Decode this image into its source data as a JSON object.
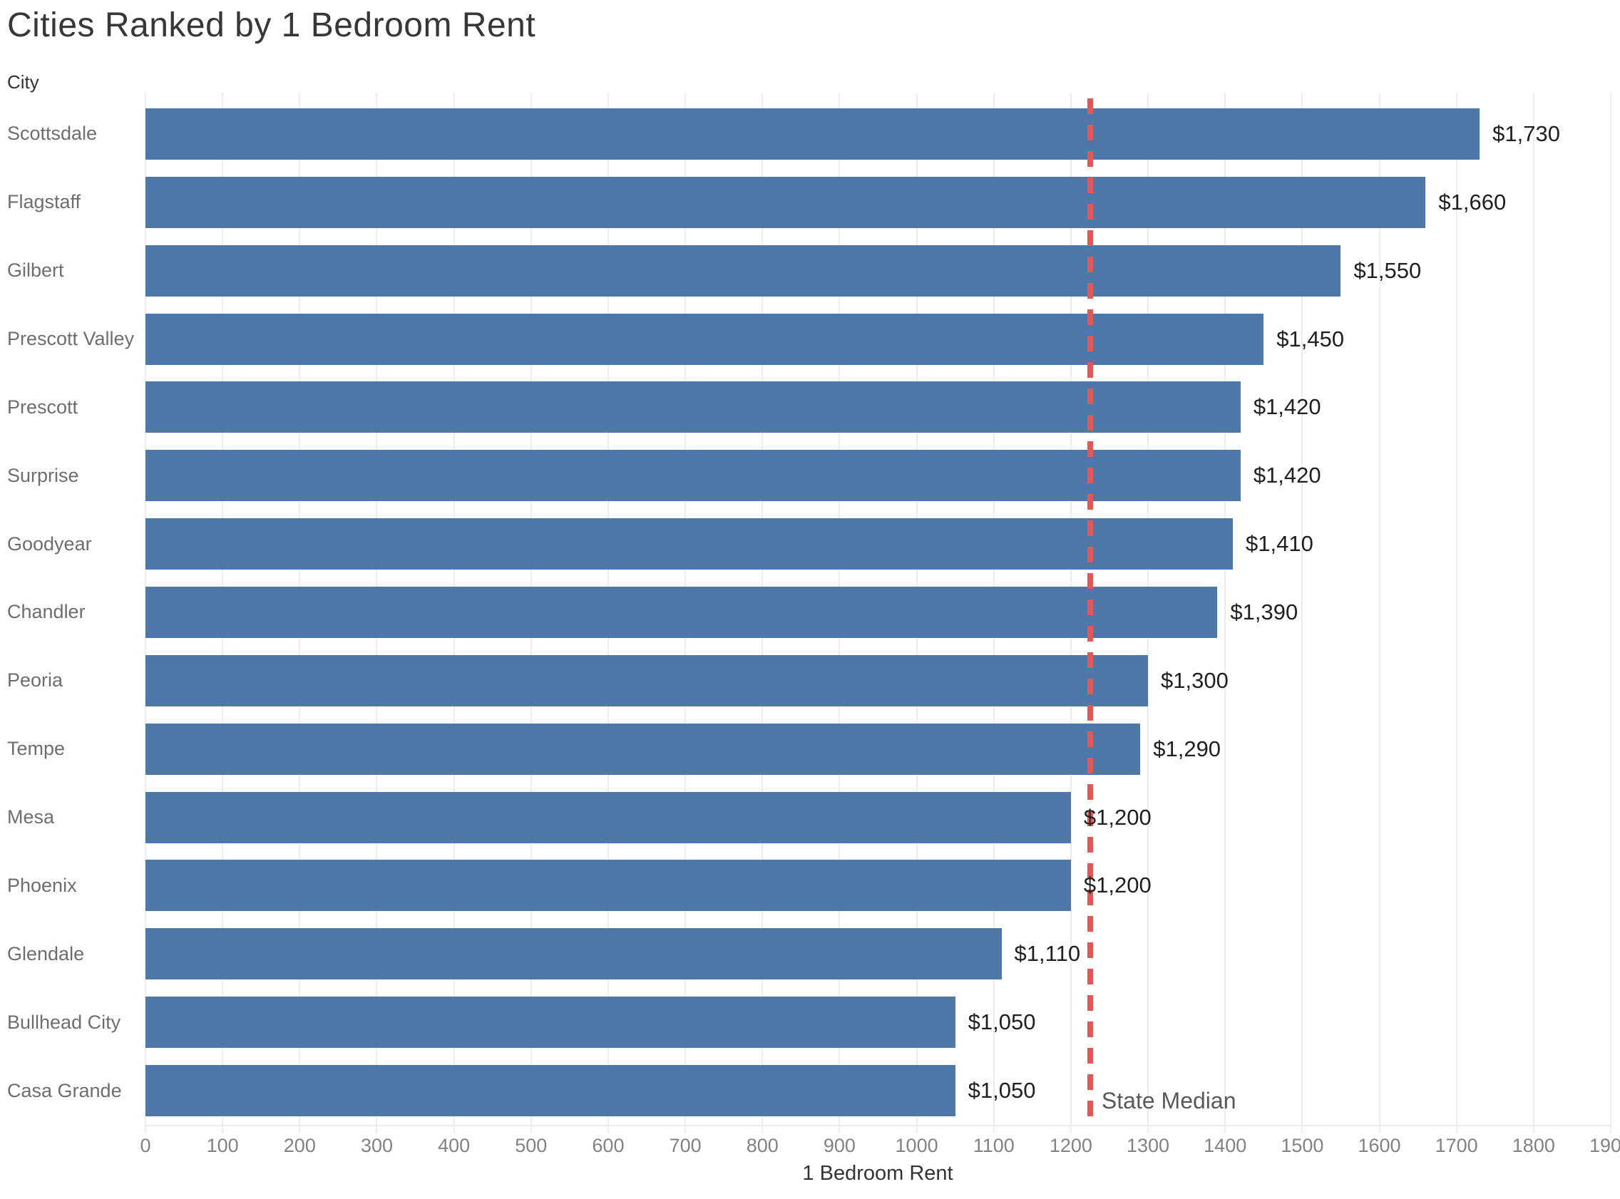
{
  "title": "Cities Ranked by 1 Bedroom Rent",
  "column_header": "City",
  "x_axis_label": "1 Bedroom Rent",
  "reference_line_label": "State Median",
  "colors": {
    "bar": "#4d78a8",
    "reference_line": "#e05858",
    "gridline": "#ededed",
    "title_text": "#373737",
    "city_label_text": "#6e6e6e",
    "value_label_text": "#202020",
    "tick_label_text": "#828282"
  },
  "chart_data": {
    "type": "bar",
    "orientation": "horizontal",
    "title": "Cities Ranked by 1 Bedroom Rent",
    "xlabel": "1 Bedroom Rent",
    "ylabel": "City",
    "xlim": [
      0,
      1900
    ],
    "tick_interval": 100,
    "grid": true,
    "categories": [
      "Scottsdale",
      "Flagstaff",
      "Gilbert",
      "Prescott Valley",
      "Prescott",
      "Surprise",
      "Goodyear",
      "Chandler",
      "Peoria",
      "Tempe",
      "Mesa",
      "Phoenix",
      "Glendale",
      "Bullhead City",
      "Casa Grande"
    ],
    "values": [
      1730,
      1660,
      1550,
      1450,
      1420,
      1420,
      1410,
      1390,
      1300,
      1290,
      1200,
      1200,
      1110,
      1050,
      1050
    ],
    "value_labels": [
      "$1,730",
      "$1,660",
      "$1,550",
      "$1,450",
      "$1,420",
      "$1,420",
      "$1,410",
      "$1,390",
      "$1,300",
      "$1,290",
      "$1,200",
      "$1,200",
      "$1,110",
      "$1,050",
      "$1,050"
    ],
    "reference_line": {
      "label": "State Median",
      "value": 1225,
      "color": "#e05858",
      "style": "dashed"
    },
    "bar_color": "#4d78a8"
  }
}
